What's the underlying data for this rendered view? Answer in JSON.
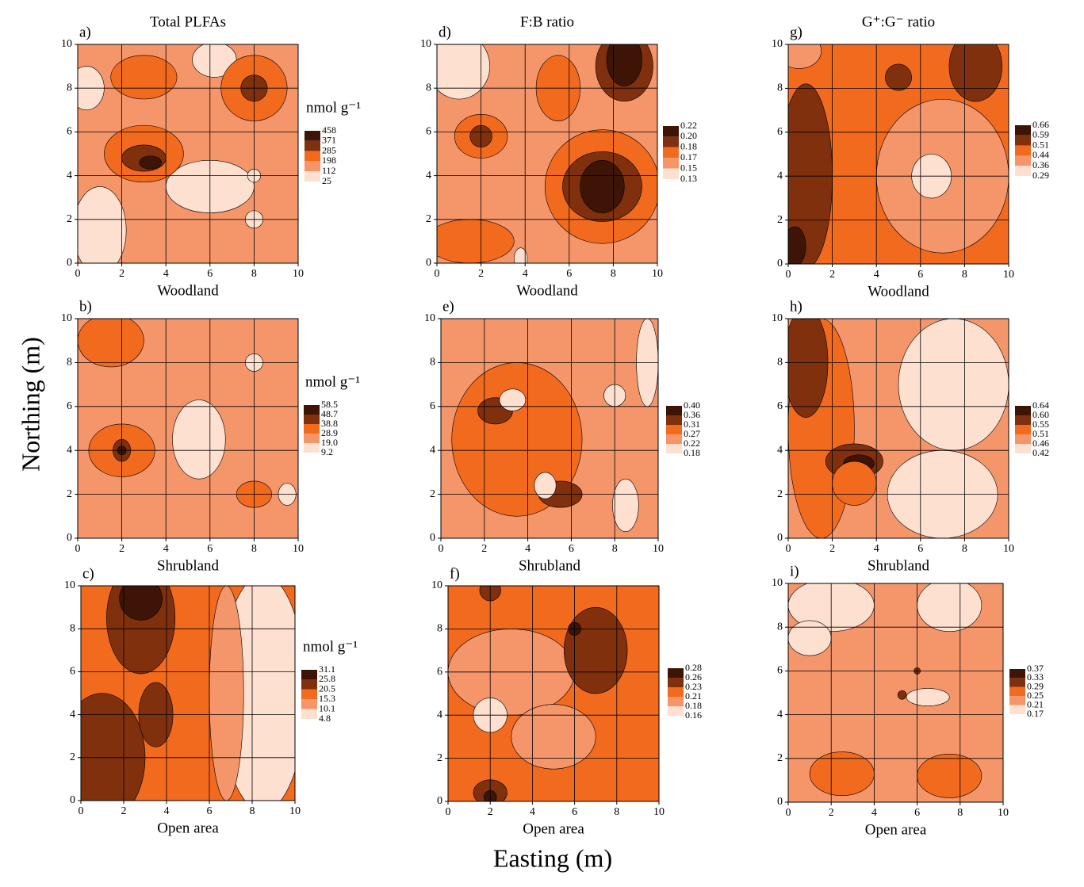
{
  "figure": {
    "ylabel": "Northing (m)",
    "xlabel": "Easting (m)",
    "colors": [
      "#3d1405",
      "#80300d",
      "#f26a1e",
      "#f5956a",
      "#fde0d0"
    ]
  },
  "chart_data": [
    {
      "type": "contour",
      "panel_label": "a)",
      "title": "Total PLFAs",
      "xlabel": "Woodland",
      "legend_title": "nmol g⁻¹",
      "levels": [
        458,
        371,
        285,
        198,
        112,
        25
      ],
      "xlim": [
        0,
        10
      ],
      "ylim": [
        0,
        10
      ],
      "xticks": [
        0,
        2,
        4,
        6,
        8,
        10
      ],
      "yticks": [
        0,
        2,
        4,
        6,
        8,
        10
      ],
      "grid": true
    },
    {
      "type": "contour",
      "panel_label": "b)",
      "xlabel": "Shrubland",
      "legend_title": "nmol g⁻¹",
      "levels": [
        58.5,
        48.7,
        38.8,
        28.9,
        {
          "value": 19,
          "label": "19.0"
        },
        9.2
      ],
      "xlim": [
        0,
        10
      ],
      "ylim": [
        0,
        10
      ],
      "xticks": [
        0,
        2,
        4,
        6,
        8,
        10
      ],
      "yticks": [
        0,
        2,
        4,
        6,
        8,
        10
      ],
      "grid": true
    },
    {
      "type": "contour",
      "panel_label": "c)",
      "xlabel": "Open area",
      "legend_title": "nmol g⁻¹",
      "levels": [
        31.1,
        25.8,
        20.5,
        15.3,
        10.1,
        4.8
      ],
      "xlim": [
        0,
        10
      ],
      "ylim": [
        0,
        10
      ],
      "xticks": [
        0,
        2,
        4,
        6,
        8,
        10
      ],
      "yticks": [
        0,
        2,
        4,
        6,
        8,
        10
      ],
      "grid": true
    },
    {
      "type": "contour",
      "panel_label": "d)",
      "title": "F:B ratio",
      "xlabel": "Woodland",
      "levels": [
        0.22,
        {
          "value": 0.2,
          "label": "0.20"
        },
        0.18,
        0.17,
        0.15,
        0.13
      ],
      "xlim": [
        0,
        10
      ],
      "ylim": [
        0,
        10
      ],
      "xticks": [
        0,
        2,
        4,
        6,
        8,
        10
      ],
      "yticks": [
        0,
        2,
        4,
        6,
        8,
        10
      ],
      "grid": true
    },
    {
      "type": "contour",
      "panel_label": "e)",
      "xlabel": "Shrubland",
      "levels": [
        {
          "value": 0.4,
          "label": "0.40"
        },
        0.36,
        0.31,
        0.27,
        0.22,
        0.18
      ],
      "xlim": [
        0,
        10
      ],
      "ylim": [
        0,
        10
      ],
      "xticks": [
        0,
        2,
        4,
        6,
        8,
        10
      ],
      "yticks": [
        0,
        2,
        4,
        6,
        8,
        10
      ],
      "grid": true
    },
    {
      "type": "contour",
      "panel_label": "f)",
      "xlabel": "Open area",
      "levels": [
        0.28,
        0.26,
        0.23,
        0.21,
        0.18,
        0.16
      ],
      "xlim": [
        0,
        10
      ],
      "ylim": [
        0,
        10
      ],
      "xticks": [
        0,
        2,
        4,
        6,
        8,
        10
      ],
      "yticks": [
        0,
        2,
        4,
        6,
        8,
        10
      ],
      "grid": true
    },
    {
      "type": "contour",
      "panel_label": "g)",
      "title": "G⁺:G⁻ ratio",
      "xlabel": "Woodland",
      "levels": [
        0.66,
        0.59,
        0.51,
        0.44,
        0.36,
        0.29
      ],
      "xlim": [
        0,
        10
      ],
      "ylim": [
        0,
        10
      ],
      "xticks": [
        0,
        2,
        4,
        6,
        8,
        10
      ],
      "yticks": [
        0,
        2,
        4,
        6,
        8,
        10
      ],
      "grid": true
    },
    {
      "type": "contour",
      "panel_label": "h)",
      "xlabel": "Shrubland",
      "levels": [
        0.64,
        {
          "value": 0.6,
          "label": "0.60"
        },
        0.55,
        0.51,
        0.46,
        0.42
      ],
      "xlim": [
        0,
        10
      ],
      "ylim": [
        0,
        10
      ],
      "xticks": [
        0,
        2,
        4,
        6,
        8,
        10
      ],
      "yticks": [
        0,
        2,
        4,
        6,
        8,
        10
      ],
      "grid": true
    },
    {
      "type": "contour",
      "panel_label": "i)",
      "xlabel": "Open area",
      "levels": [
        0.37,
        0.33,
        0.29,
        0.25,
        0.21,
        0.17
      ],
      "xlim": [
        0,
        10
      ],
      "ylim": [
        0,
        10
      ],
      "xticks": [
        0,
        2,
        4,
        6,
        8,
        10
      ],
      "yticks": [
        0,
        2,
        4,
        6,
        8,
        10
      ],
      "grid": true
    }
  ]
}
